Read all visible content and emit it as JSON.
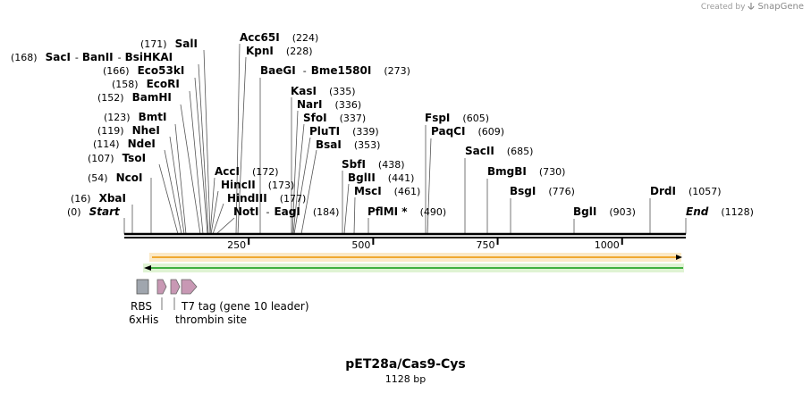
{
  "credit": {
    "prefix": "Created by",
    "brand": "SnapGene"
  },
  "plasmid": {
    "name": "pET28a/Cas9-Cys",
    "length_label": "1128 bp",
    "length_bp": 1128
  },
  "ruler_ticks": [
    {
      "pos": 250,
      "label": "250"
    },
    {
      "pos": 500,
      "label": "500"
    },
    {
      "pos": 750,
      "label": "750"
    },
    {
      "pos": 1000,
      "label": "1000"
    }
  ],
  "site_labels": [
    {
      "text": "(0)  Start",
      "pos": 0
    },
    {
      "text": "(16)  XbaI",
      "pos": 16
    },
    {
      "text": "(54)  NcoI",
      "pos": 54
    },
    {
      "text": "(107)  TsoI",
      "pos": 107
    },
    {
      "text": "(114)  NdeI",
      "pos": 114
    },
    {
      "text": "(119)  NheI",
      "pos": 119
    },
    {
      "text": "(123)  BmtI",
      "pos": 123
    },
    {
      "text": "(152)  BamHI",
      "pos": 152
    },
    {
      "text": "(158)  EcoRI",
      "pos": 158
    },
    {
      "text": "(166)  Eco53kI",
      "pos": 166
    },
    {
      "text": "(168)  SacI  - BanII  - BsiHKAI",
      "pos": 168
    },
    {
      "text": "(171)  SalI",
      "pos": 171
    },
    {
      "text": "AccI  (172)",
      "pos": 172
    },
    {
      "text": "HincII  (173)",
      "pos": 173
    },
    {
      "text": "HindIII  (177)",
      "pos": 177
    },
    {
      "text": "NotI  - EagI  (184)",
      "pos": 184
    },
    {
      "text": "Acc65I  (224)",
      "pos": 224
    },
    {
      "text": "KpnI  (228)",
      "pos": 228
    },
    {
      "text": "BaeGI  - Bme1580I  (273)",
      "pos": 273
    },
    {
      "text": "KasI  (335)",
      "pos": 335
    },
    {
      "text": "NarI  (336)",
      "pos": 336
    },
    {
      "text": "SfoI  (337)",
      "pos": 337
    },
    {
      "text": "PluTI  (339)",
      "pos": 339
    },
    {
      "text": "BsaI  (353)",
      "pos": 353
    },
    {
      "text": "SbfI  (438)",
      "pos": 438
    },
    {
      "text": "BglII  (441)",
      "pos": 441
    },
    {
      "text": "MscI  (461)",
      "pos": 461
    },
    {
      "text": "PflMI *  (490)",
      "pos": 490
    },
    {
      "text": "FspI  (605)",
      "pos": 605
    },
    {
      "text": "PaqCI  (609)",
      "pos": 609
    },
    {
      "text": "SacII  (685)",
      "pos": 685
    },
    {
      "text": "BmgBI  (730)",
      "pos": 730
    },
    {
      "text": "BsgI  (776)",
      "pos": 776
    },
    {
      "text": "BglI  (903)",
      "pos": 903
    },
    {
      "text": "DrdI  (1057)",
      "pos": 1057
    },
    {
      "text": "End  (1128)",
      "pos": 1128
    }
  ],
  "features": [
    {
      "name": "RBS",
      "type": "RBS",
      "color": "#a0a6ae"
    },
    {
      "name": "6xHis",
      "type": "tag",
      "color": "#c898b4"
    },
    {
      "name": "thrombin site",
      "type": "cleavage site",
      "color": "#c898b4"
    },
    {
      "name": "T7 tag (gene 10 leader)",
      "type": "tag",
      "color": "#c898b4"
    }
  ],
  "colors": {
    "forward_arrow": "#f0a830",
    "reverse_arrow": "#40b040",
    "line": "#000000",
    "leader": "#555555"
  }
}
